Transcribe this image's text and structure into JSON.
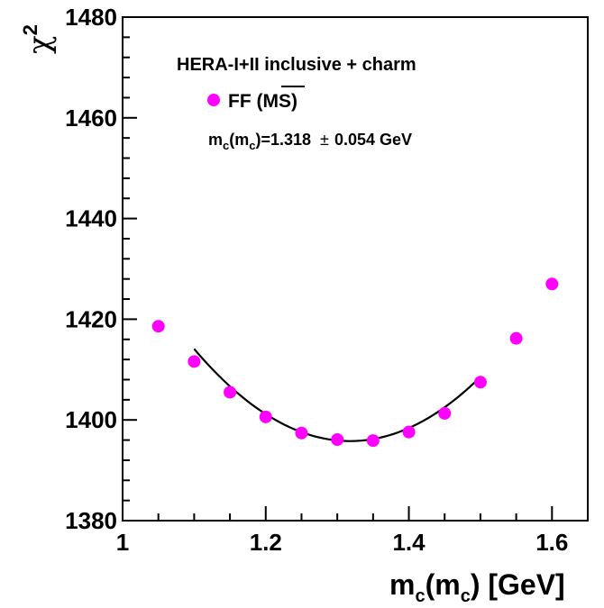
{
  "chart_data": {
    "type": "scatter",
    "title": "",
    "xlabel": {
      "base": "m",
      "sub1": "c",
      "mid": "(m",
      "sub2": "c",
      "tail": ") [GeV]"
    },
    "ylabel": {
      "base": "χ",
      "sup": "2"
    },
    "xlim": [
      1.0,
      1.65
    ],
    "ylim": [
      1380,
      1480
    ],
    "x_ticks": [
      1,
      1.2,
      1.4,
      1.6
    ],
    "x_tick_labels": [
      "1",
      "1.2",
      "1.4",
      "1.6"
    ],
    "y_ticks": [
      1380,
      1400,
      1420,
      1440,
      1460,
      1480
    ],
    "y_tick_labels": [
      "1380",
      "1400",
      "1420",
      "1440",
      "1460",
      "1480"
    ],
    "grid": false,
    "legend_position": "top-left",
    "annotations": {
      "line1": "HERA-I+II inclusive + charm",
      "legend_label": "FF (",
      "legend_label_ms": "MS",
      "legend_label_close": ")",
      "result_base": "m",
      "result_sub1": "c",
      "result_mid": "(m",
      "result_sub2": "c",
      "result_tail": ")=1.318",
      "result_pm": "±",
      "result_err": "0.054 GeV"
    },
    "series": [
      {
        "name": "FF (MS)",
        "color": "#ff00ff",
        "x": [
          1.05,
          1.1,
          1.15,
          1.2,
          1.25,
          1.3,
          1.35,
          1.4,
          1.45,
          1.5,
          1.55,
          1.6
        ],
        "y": [
          1418.6,
          1411.6,
          1405.5,
          1400.6,
          1397.4,
          1396.1,
          1395.9,
          1397.6,
          1401.3,
          1407.5,
          1416.2,
          1427.0
        ]
      }
    ],
    "fit": {
      "type": "parabola",
      "color": "#000000",
      "x_range": [
        1.1,
        1.5
      ],
      "x_min": 1.318,
      "y_min": 1395.8,
      "curvature": 385
    }
  }
}
